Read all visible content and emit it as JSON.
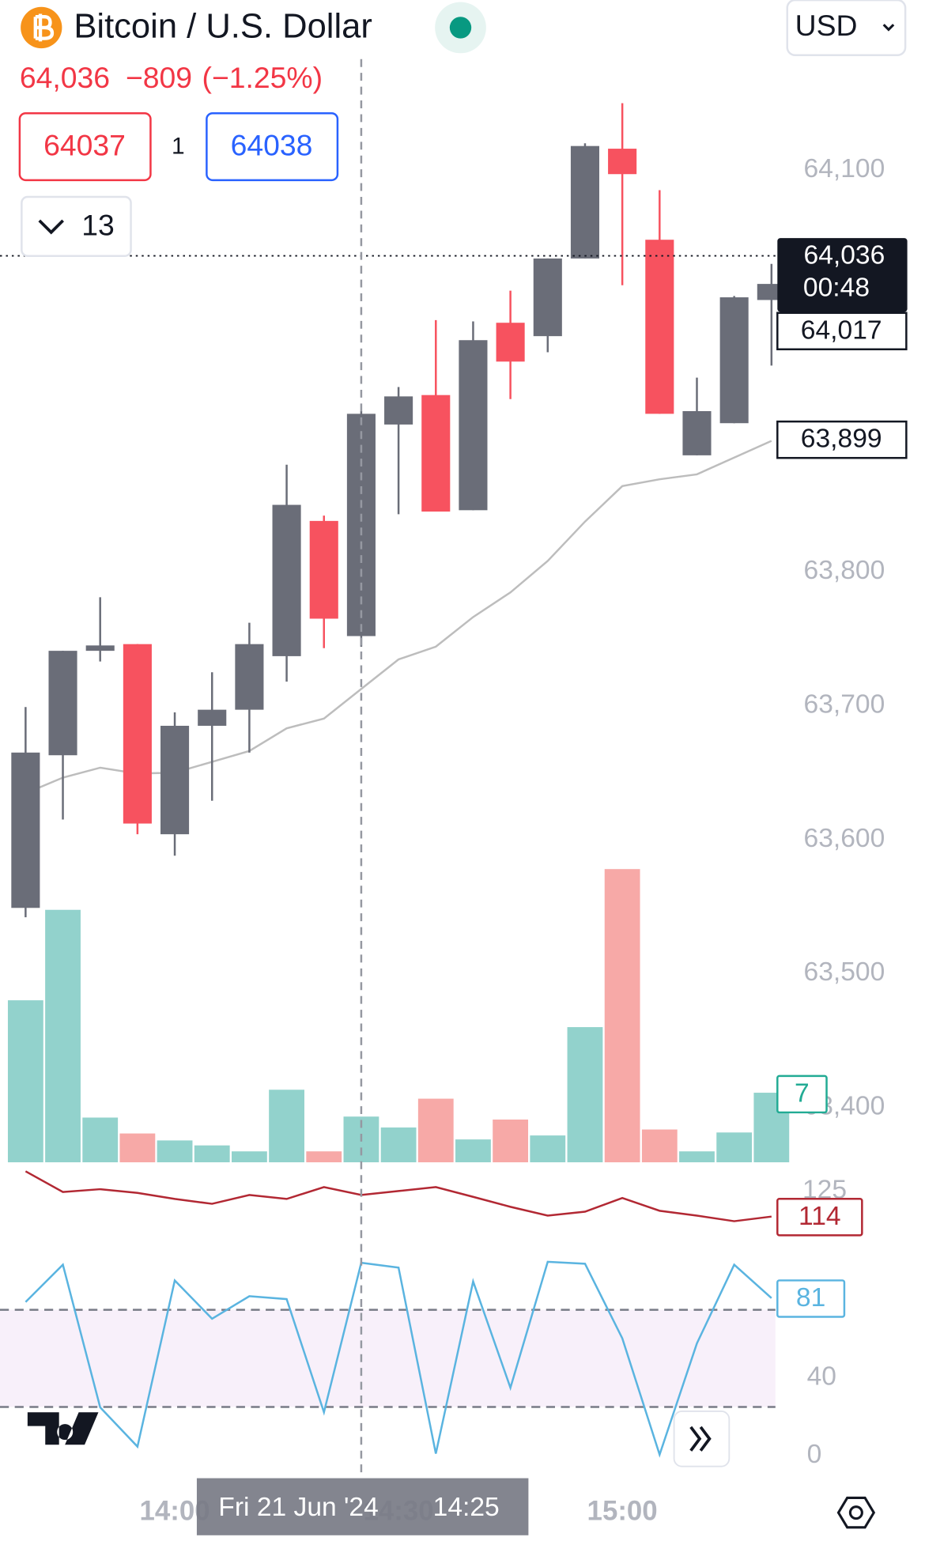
{
  "header": {
    "title": "Bitcoin / U.S. Dollar",
    "last": "64,036",
    "change": "−809",
    "change_pct": "(−1.25%)",
    "sell": "64037",
    "spread": "1",
    "buy": "64038",
    "indicators_count": "13",
    "currency": "USD"
  },
  "chart_data": {
    "type": "candlestick",
    "categories": [
      null,
      null,
      null,
      null,
      "14:00",
      null,
      null,
      null,
      null,
      null,
      "14:30",
      null,
      null,
      null,
      null,
      null,
      "15:00",
      null,
      null,
      null,
      null
    ],
    "crosshair": {
      "index": 9,
      "date": "Fri 21 Jun '24",
      "time": "14:25"
    },
    "open": [
      63549,
      63663,
      63741,
      63746,
      63604,
      63685,
      63697,
      63737,
      63838,
      63752,
      63910,
      63932,
      63846,
      63986,
      63976,
      64034,
      64116,
      64048,
      63887,
      63911,
      64003
    ],
    "high": [
      63699,
      63741,
      63781,
      63746,
      63695,
      63725,
      63762,
      63880,
      63842,
      63920,
      63938,
      63988,
      63987,
      64010,
      64034,
      64120,
      64150,
      64085,
      63945,
      64006,
      64030
    ],
    "low": [
      63542,
      63615,
      63733,
      63604,
      63588,
      63629,
      63665,
      63718,
      63743,
      63744,
      63843,
      63845,
      63846,
      63929,
      63964,
      64034,
      64014,
      63918,
      63887,
      63911,
      63954
    ],
    "close": [
      63665,
      63741,
      63745,
      63612,
      63685,
      63697,
      63746,
      63850,
      63765,
      63918,
      63931,
      63845,
      63973,
      63957,
      64034,
      64118,
      64097,
      63918,
      63920,
      64005,
      64015
    ],
    "up_color": "#6a6d78",
    "down_color": "#f7525f",
    "ylim": [
      63359,
      64227
    ],
    "yticks": [
      {
        "value": 64100,
        "label": "64,100"
      },
      {
        "value": 63800,
        "label": "63,800"
      },
      {
        "value": 63700,
        "label": "63,700"
      },
      {
        "value": 63600,
        "label": "63,600"
      },
      {
        "value": 63500,
        "label": "63,500"
      },
      {
        "value": 63400,
        "label": "63,400"
      }
    ],
    "last_price": {
      "value": 64036,
      "label": "64,036",
      "countdown": "00:48"
    },
    "price_tags": [
      {
        "value": 64017,
        "label": "64,017"
      },
      {
        "value": 63899,
        "label": "63,899"
      }
    ],
    "ma": {
      "color": "#bdbdbd",
      "values": [
        63634.6,
        63646.3,
        63653.7,
        63649.3,
        63650,
        63658.1,
        63666.2,
        63683.1,
        63690.4,
        63712.5,
        63734.6,
        63744.1,
        63766.2,
        63784.6,
        63808.1,
        63837.5,
        63864,
        63869.1,
        63872.8,
        63885.3,
        63897.8
      ]
    },
    "volume": {
      "up_color": "#92d2cc",
      "down_color": "#f7a9a7",
      "tag_color": "#22ab94",
      "ylim": [
        0,
        30
      ],
      "values": [
        16.3,
        25.4,
        4.5,
        2.9,
        2.2,
        1.7,
        1.1,
        7.3,
        1.1,
        4.6,
        3.5,
        6.4,
        2.3,
        4.3,
        2.7,
        13.6,
        29.5,
        3.3,
        1.1,
        3,
        7
      ]
    },
    "indicator": {
      "color": "#b22833",
      "ylim": [
        106,
        134
      ],
      "yticks": [
        125
      ],
      "values": [
        133.5,
        124.6,
        125.8,
        124.2,
        121.6,
        119.5,
        123.3,
        121.6,
        126.7,
        123.3,
        125,
        126.7,
        122.5,
        118.2,
        114.4,
        116.1,
        122,
        116.5,
        114.4,
        112,
        114
      ]
    },
    "oscillator": {
      "color": "#5ab4e0",
      "band_color": "#f8f0fa",
      "ylim": [
        0,
        100
      ],
      "yticks": [
        40,
        0
      ],
      "bands": [
        75,
        25
      ],
      "values": [
        79,
        98.2,
        24.8,
        4.6,
        90.1,
        70.4,
        82,
        80.5,
        22.3,
        99.2,
        96.7,
        1,
        89.6,
        34.9,
        99.7,
        98.7,
        60.3,
        0.5,
        57.7,
        98.2,
        81
      ]
    }
  }
}
